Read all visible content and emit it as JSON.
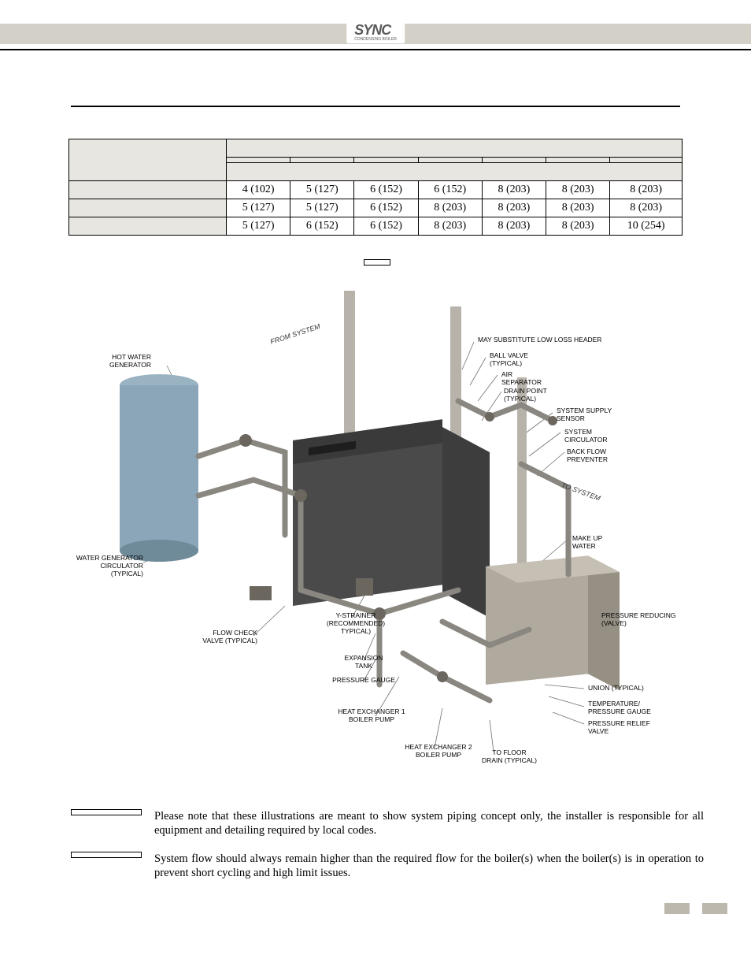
{
  "logo": {
    "name": "SYNC",
    "sub": "CONDENSING BOILER"
  },
  "table": {
    "first_col_header_blank": "",
    "models": [
      "",
      "",
      "",
      "",
      "",
      "",
      ""
    ],
    "row_headers_blank": [
      "",
      ""
    ],
    "rows": [
      {
        "label": "",
        "cells": [
          "4 (102)",
          "5 (127)",
          "6 (152)",
          "6 (152)",
          "8 (203)",
          "8 (203)",
          "8 (203)"
        ]
      },
      {
        "label": "",
        "cells": [
          "5 (127)",
          "5 (127)",
          "6 (152)",
          "8 (203)",
          "8 (203)",
          "8 (203)",
          "8 (203)"
        ]
      },
      {
        "label": "",
        "cells": [
          "5 (127)",
          "6 (152)",
          "6 (152)",
          "8 (203)",
          "8 (203)",
          "8 (203)",
          "10 (254)"
        ]
      }
    ]
  },
  "diagram": {
    "model_label": "",
    "pipe_from": "FROM SYSTEM",
    "pipe_to": "TO SYSTEM",
    "left_labels": {
      "hot_water_gen": "HOT WATER\nGENERATOR",
      "water_gen_circ": "WATER GENERATOR\nCIRCULATOR\n(TYPICAL)",
      "flow_check": "FLOW CHECK\nVALVE (TYPICAL)"
    },
    "center_labels": {
      "y_strainer": "Y-STRAINER\n(RECOMMENDED)\nTYPICAL)",
      "expansion": "EXPANSION\nTANK",
      "pressure_gauge": "PRESSURE GAUGE",
      "hx1": "HEAT EXCHANGER 1\nBOILER PUMP",
      "hx2": "HEAT EXCHANGER 2\nBOILER PUMP",
      "floor_drain": "TO FLOOR\nDRAIN (TYPICAL)"
    },
    "right_labels": {
      "substitute": "MAY SUBSTITUTE LOW LOSS HEADER",
      "ball_valve": "BALL VALVE\n(TYPICAL)",
      "air_sep": "AIR\nSEPARATOR",
      "drain_point": "DRAIN POINT\n(TYPICAL)",
      "sys_supply": "SYSTEM SUPPLY\nSENSOR",
      "sys_circ": "SYSTEM\nCIRCULATOR",
      "backflow": "BACK FLOW\nPREVENTER",
      "makeup": "MAKE UP\nWATER",
      "pressure_reducing": "PRESSURE REDUCING\n(VALVE)",
      "union": "UNION (TYPICAL)",
      "temp_pressure": "TEMPERATURE/\nPRESSURE GAUGE",
      "relief": "PRESSURE RELIEF\nVALVE"
    },
    "colors": {
      "tank": "#8aa6b8",
      "boiler": "#4a4a4a",
      "header_tank": "#a9a29a",
      "pipe": "#8a8680",
      "line": "#717171"
    }
  },
  "notices": {
    "label1": "",
    "text1": "Please note that these illustrations are meant to show system piping concept only, the installer is responsible for all equipment and detailing required by local codes.",
    "label2": "",
    "text2": "System flow should always remain higher than the required flow for the boiler(s) when the boiler(s) is in operation to prevent short cycling and high limit issues."
  },
  "style": {
    "table_shade": "#e8e6e0",
    "footer_bar": "#bdb8ae",
    "body_font": "Georgia",
    "label_font": "Arial",
    "table_fontsize": 14,
    "notice_fontsize": 14.5,
    "callout_fontsize": 8.5
  }
}
